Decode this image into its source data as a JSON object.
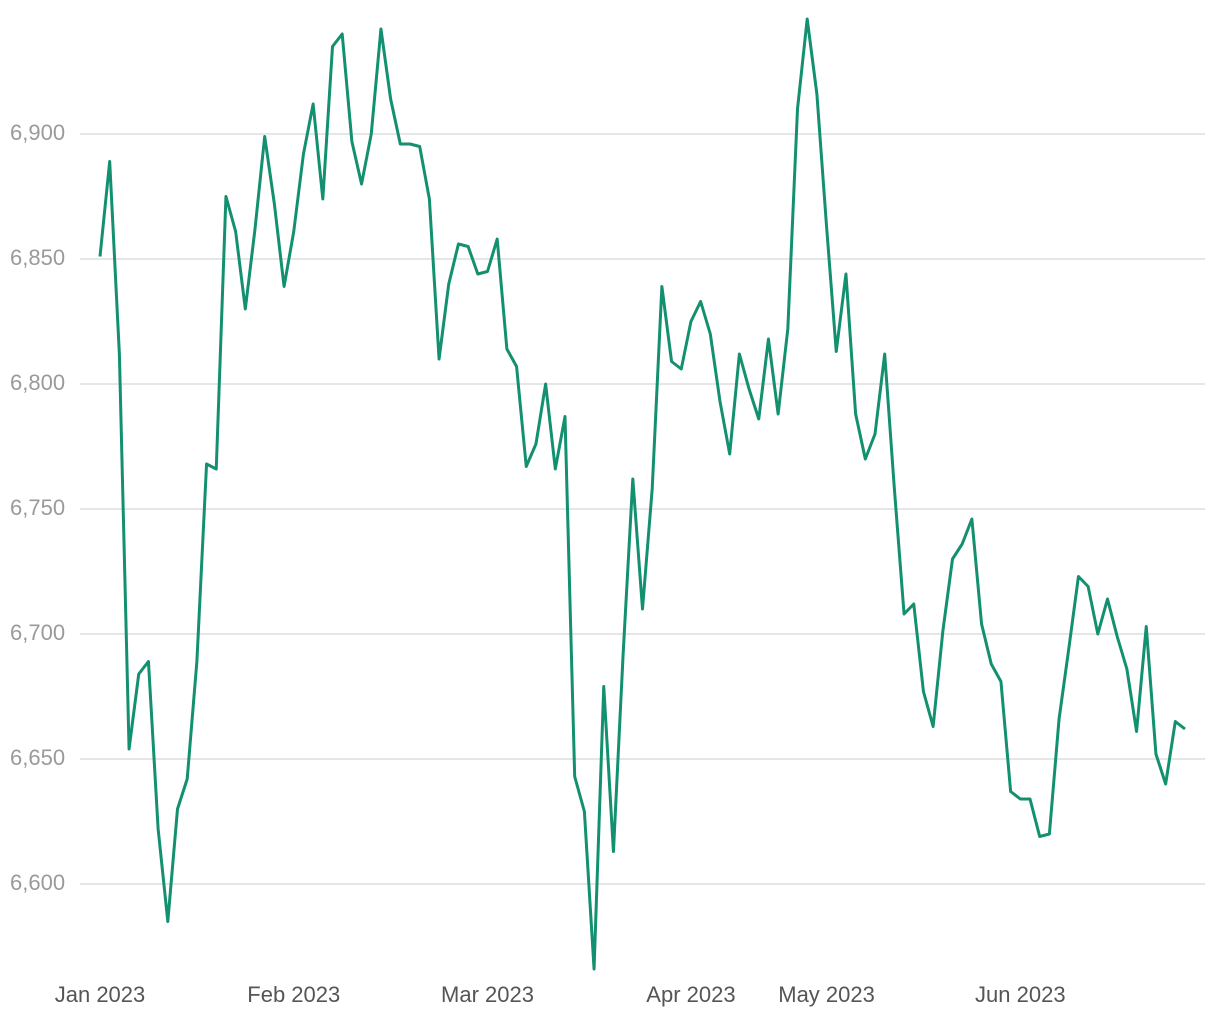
{
  "chart_data": {
    "type": "line",
    "color": "#13906f",
    "grid": true,
    "ylim": [
      6565,
      6947
    ],
    "yticks": [
      {
        "value": 6600,
        "label": "6,600"
      },
      {
        "value": 6650,
        "label": "6,650"
      },
      {
        "value": 6700,
        "label": "6,700"
      },
      {
        "value": 6750,
        "label": "6,750"
      },
      {
        "value": 6800,
        "label": "6,800"
      },
      {
        "value": 6850,
        "label": "6,850"
      },
      {
        "value": 6900,
        "label": "6,900"
      }
    ],
    "categories": [
      "Jan 2023",
      null,
      null,
      null,
      null,
      null,
      null,
      null,
      null,
      null,
      null,
      null,
      null,
      null,
      null,
      null,
      null,
      null,
      null,
      null,
      "Feb 2023",
      null,
      null,
      null,
      null,
      null,
      null,
      null,
      null,
      null,
      null,
      null,
      null,
      null,
      null,
      null,
      null,
      null,
      null,
      null,
      "Mar 2023",
      null,
      null,
      null,
      null,
      null,
      null,
      null,
      null,
      null,
      null,
      null,
      null,
      null,
      null,
      null,
      null,
      null,
      null,
      null,
      null,
      "Apr 2023",
      null,
      null,
      null,
      null,
      null,
      null,
      null,
      null,
      null,
      null,
      null,
      null,
      null,
      "May 2023",
      null,
      null,
      null,
      null,
      null,
      null,
      null,
      null,
      null,
      null,
      null,
      null,
      null,
      null,
      null,
      null,
      null,
      null,
      null,
      "Jun 2023",
      null,
      null,
      null,
      null,
      null,
      null,
      null,
      null,
      null,
      null,
      null,
      null,
      null,
      null,
      null,
      null,
      null
    ],
    "values": [
      6851,
      6889,
      6812,
      6654,
      6684,
      6689,
      6622,
      6585,
      6630,
      6642,
      6689,
      6768,
      6766,
      6875,
      6861,
      6830,
      6862,
      6899,
      6872,
      6839,
      6861,
      6892,
      6912,
      6874,
      6935,
      6940,
      6897,
      6880,
      6900,
      6942,
      6914,
      6896,
      6896,
      6895,
      6874,
      6810,
      6840,
      6856,
      6855,
      6844,
      6845,
      6858,
      6814,
      6807,
      6767,
      6776,
      6800,
      6766,
      6787,
      6643,
      6629,
      6566,
      6679,
      6613,
      6692,
      6762,
      6710,
      6758,
      6839,
      6809,
      6806,
      6825,
      6833,
      6820,
      6793,
      6772,
      6812,
      6798,
      6786,
      6818,
      6788,
      6822,
      6910,
      6946,
      6916,
      6863,
      6813,
      6844,
      6788,
      6770,
      6780,
      6812,
      6758,
      6708,
      6712,
      6677,
      6663,
      6701,
      6730,
      6736,
      6746,
      6704,
      6688,
      6681,
      6637,
      6634,
      6634,
      6619,
      6620,
      6666,
      6694,
      6723,
      6719,
      6700,
      6714,
      6699,
      6686,
      6661,
      6703,
      6652,
      6640,
      6665,
      6662
    ]
  }
}
